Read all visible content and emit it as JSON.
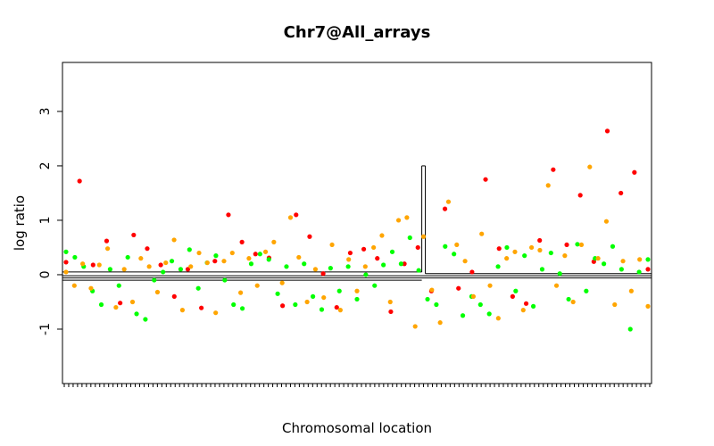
{
  "chart_data": {
    "type": "scatter",
    "title": "Chr7@All_arrays",
    "xlabel": "Chromosomal location",
    "ylabel": "log ratio",
    "ylim": [
      -2.0,
      3.9
    ],
    "yticks": [
      -1,
      0,
      1,
      2,
      3
    ],
    "ytick_labels": [
      "-1",
      "0",
      "1",
      "2",
      "3"
    ],
    "grid": false,
    "legend": "none",
    "point_colors": {
      "red": "#ff0000",
      "green": "#00ff00",
      "orange": "#ffa500"
    },
    "series": [
      {
        "color": "red",
        "points": [
          [
            1,
            0.23
          ],
          [
            2,
            1.72
          ],
          [
            3,
            0.18
          ],
          [
            4,
            0.62
          ],
          [
            5,
            -0.52
          ],
          [
            6,
            0.73
          ],
          [
            7,
            0.48
          ],
          [
            8,
            0.18
          ],
          [
            9,
            -0.4
          ],
          [
            10,
            0.1
          ],
          [
            11,
            -0.61
          ],
          [
            12,
            0.25
          ],
          [
            13,
            1.1
          ],
          [
            14,
            0.6
          ],
          [
            15,
            0.38
          ],
          [
            16,
            0.31
          ],
          [
            17,
            -0.57
          ],
          [
            18,
            1.1
          ],
          [
            19,
            0.7
          ],
          [
            20,
            0.02
          ],
          [
            21,
            -0.6
          ],
          [
            22,
            0.4
          ],
          [
            23,
            0.47
          ],
          [
            24,
            0.3
          ],
          [
            25,
            -0.68
          ],
          [
            26,
            0.2
          ],
          [
            27,
            0.5
          ],
          [
            28,
            -0.3
          ],
          [
            29,
            1.21
          ],
          [
            30,
            -0.25
          ],
          [
            31,
            0.05
          ],
          [
            32,
            1.75
          ],
          [
            33,
            0.48
          ],
          [
            34,
            -0.4
          ],
          [
            35,
            -0.53
          ],
          [
            36,
            0.63
          ],
          [
            37,
            1.93
          ],
          [
            38,
            0.55
          ],
          [
            39,
            1.46
          ],
          [
            40,
            0.24
          ],
          [
            41,
            2.64
          ],
          [
            42,
            1.5
          ],
          [
            43,
            1.88
          ],
          [
            44,
            0.1
          ]
        ]
      },
      {
        "color": "green",
        "points": [
          [
            1,
            0.42
          ],
          [
            2,
            0.32
          ],
          [
            3,
            0.15
          ],
          [
            4,
            -0.3
          ],
          [
            5,
            -0.55
          ],
          [
            6,
            0.1
          ],
          [
            7,
            -0.2
          ],
          [
            8,
            0.32
          ],
          [
            9,
            -0.72
          ],
          [
            10,
            -0.82
          ],
          [
            11,
            -0.1
          ],
          [
            12,
            0.05
          ],
          [
            13,
            0.25
          ],
          [
            14,
            0.1
          ],
          [
            15,
            0.46
          ],
          [
            16,
            -0.25
          ],
          [
            17,
            0.22
          ],
          [
            18,
            0.35
          ],
          [
            19,
            -0.1
          ],
          [
            20,
            -0.55
          ],
          [
            21,
            -0.62
          ],
          [
            22,
            0.2
          ],
          [
            23,
            0.38
          ],
          [
            24,
            0.28
          ],
          [
            25,
            -0.35
          ],
          [
            26,
            0.15
          ],
          [
            27,
            -0.55
          ],
          [
            28,
            0.2
          ],
          [
            29,
            -0.4
          ],
          [
            30,
            -0.64
          ],
          [
            31,
            0.12
          ],
          [
            32,
            -0.3
          ],
          [
            33,
            0.15
          ],
          [
            34,
            -0.45
          ],
          [
            35,
            0.0
          ],
          [
            36,
            -0.2
          ],
          [
            37,
            0.18
          ],
          [
            38,
            0.42
          ],
          [
            39,
            0.2
          ],
          [
            40,
            0.68
          ],
          [
            41,
            0.08
          ],
          [
            42,
            -0.45
          ],
          [
            43,
            -0.55
          ],
          [
            44,
            0.52
          ],
          [
            45,
            0.38
          ],
          [
            46,
            -0.75
          ],
          [
            47,
            -0.4
          ],
          [
            48,
            -0.55
          ],
          [
            49,
            -0.72
          ],
          [
            50,
            0.15
          ],
          [
            51,
            0.5
          ],
          [
            52,
            -0.3
          ],
          [
            53,
            0.35
          ],
          [
            54,
            -0.58
          ],
          [
            55,
            0.1
          ],
          [
            56,
            0.4
          ],
          [
            57,
            0.02
          ],
          [
            58,
            -0.45
          ],
          [
            59,
            0.56
          ],
          [
            60,
            -0.3
          ],
          [
            61,
            0.3
          ],
          [
            62,
            0.2
          ],
          [
            63,
            0.52
          ],
          [
            64,
            0.1
          ],
          [
            65,
            -1.0
          ],
          [
            66,
            0.05
          ],
          [
            67,
            0.28
          ]
        ]
      },
      {
        "color": "orange",
        "points": [
          [
            1,
            0.05
          ],
          [
            2,
            -0.2
          ],
          [
            3,
            0.2
          ],
          [
            4,
            -0.25
          ],
          [
            5,
            0.18
          ],
          [
            6,
            0.48
          ],
          [
            7,
            -0.6
          ],
          [
            8,
            0.1
          ],
          [
            9,
            -0.5
          ],
          [
            10,
            0.3
          ],
          [
            11,
            0.15
          ],
          [
            12,
            -0.32
          ],
          [
            13,
            0.22
          ],
          [
            14,
            0.64
          ],
          [
            15,
            -0.65
          ],
          [
            16,
            0.15
          ],
          [
            17,
            0.4
          ],
          [
            18,
            0.22
          ],
          [
            19,
            -0.7
          ],
          [
            20,
            0.25
          ],
          [
            21,
            0.4
          ],
          [
            22,
            -0.33
          ],
          [
            23,
            0.3
          ],
          [
            24,
            -0.2
          ],
          [
            25,
            0.42
          ],
          [
            26,
            0.6
          ],
          [
            27,
            -0.15
          ],
          [
            28,
            1.05
          ],
          [
            29,
            0.32
          ],
          [
            30,
            -0.5
          ],
          [
            31,
            0.1
          ],
          [
            32,
            -0.42
          ],
          [
            33,
            0.55
          ],
          [
            34,
            -0.65
          ],
          [
            35,
            0.28
          ],
          [
            36,
            -0.3
          ],
          [
            37,
            0.15
          ],
          [
            38,
            0.5
          ],
          [
            39,
            0.72
          ],
          [
            40,
            -0.5
          ],
          [
            41,
            1.0
          ],
          [
            42,
            1.05
          ],
          [
            43,
            -0.95
          ],
          [
            44,
            0.7
          ],
          [
            45,
            -0.28
          ],
          [
            46,
            -0.88
          ],
          [
            47,
            1.34
          ],
          [
            48,
            0.55
          ],
          [
            49,
            0.25
          ],
          [
            50,
            -0.4
          ],
          [
            51,
            0.75
          ],
          [
            52,
            -0.2
          ],
          [
            53,
            -0.8
          ],
          [
            54,
            0.3
          ],
          [
            55,
            0.42
          ],
          [
            56,
            -0.65
          ],
          [
            57,
            0.5
          ],
          [
            58,
            0.45
          ],
          [
            59,
            1.64
          ],
          [
            60,
            -0.2
          ],
          [
            61,
            0.35
          ],
          [
            62,
            -0.5
          ],
          [
            63,
            0.55
          ],
          [
            64,
            1.98
          ],
          [
            65,
            0.3
          ],
          [
            66,
            0.98
          ],
          [
            67,
            -0.55
          ],
          [
            68,
            0.25
          ],
          [
            69,
            -0.3
          ],
          [
            70,
            0.28
          ],
          [
            71,
            -0.58
          ]
        ]
      }
    ],
    "segments": [
      {
        "x0": 0.0,
        "x1": 0.61,
        "y": 0.05
      },
      {
        "x0": 0.61,
        "x1": 0.616,
        "y": 2.0
      },
      {
        "x0": 0.616,
        "x1": 1.0,
        "y": 0.02
      },
      {
        "x0": 0.0,
        "x1": 1.0,
        "y": -0.02
      },
      {
        "x0": 0.0,
        "x1": 1.0,
        "y": -0.06
      },
      {
        "x0": 0.0,
        "x1": 0.61,
        "y": -0.1
      }
    ]
  }
}
